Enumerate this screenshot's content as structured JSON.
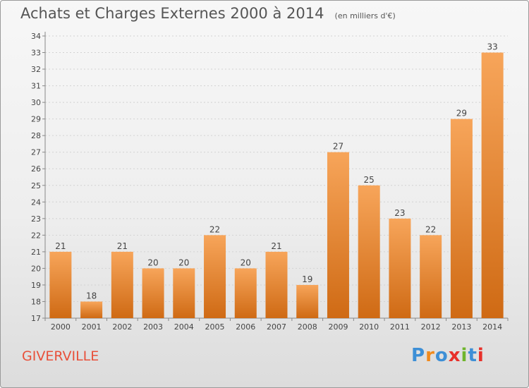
{
  "header": {
    "title": "Achats et Charges Externes 2000 à 2014",
    "unit": "(en milliers d'€)"
  },
  "footer": {
    "place": "GIVERVILLE",
    "brand": [
      "P",
      "r",
      "o",
      "x",
      "i",
      "t",
      "i"
    ]
  },
  "colors": {
    "bar_light": "#f7a55a",
    "bar_dark": "#cf6a14",
    "place": "#e8503a",
    "brand": [
      "#3d8fd6",
      "#f08a1d",
      "#3d8fd6",
      "#e8302a",
      "#6fb52c",
      "#3d8fd6",
      "#e8302a"
    ]
  },
  "chart_data": {
    "type": "bar",
    "title": "Achats et Charges Externes 2000 à 2014",
    "categories": [
      "2000",
      "2001",
      "2002",
      "2003",
      "2004",
      "2005",
      "2006",
      "2007",
      "2008",
      "2009",
      "2010",
      "2011",
      "2012",
      "2013",
      "2014"
    ],
    "values": [
      21,
      18,
      21,
      20,
      20,
      22,
      20,
      21,
      19,
      27,
      25,
      23,
      22,
      29,
      33
    ],
    "xlabel": "",
    "ylabel": "",
    "ylim": [
      17,
      34
    ],
    "yticks": [
      17,
      18,
      19,
      20,
      21,
      22,
      23,
      24,
      25,
      26,
      27,
      28,
      29,
      30,
      31,
      32,
      33,
      34
    ],
    "grid": true,
    "data_labels": true
  }
}
